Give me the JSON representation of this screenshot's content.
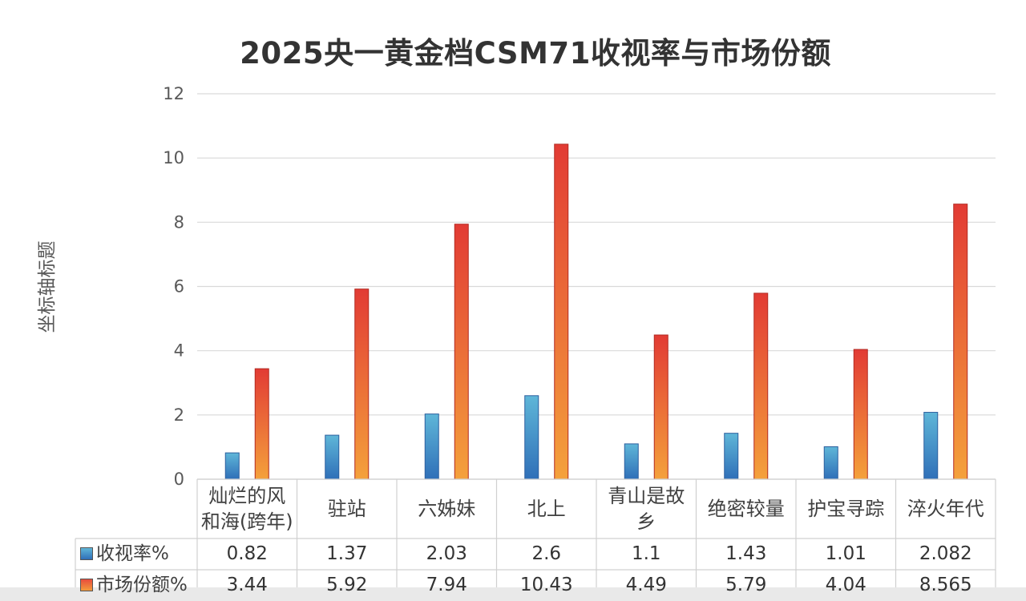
{
  "chart_data": {
    "type": "bar",
    "title": "2025央一黄金档CSM71收视率与市场份额",
    "ylabel": "坐标轴标题",
    "xlabel": "",
    "ylim": [
      0,
      12
    ],
    "yticks": [
      "0",
      "2",
      "4",
      "6",
      "8",
      "10",
      "12"
    ],
    "grid": true,
    "categories": [
      [
        "灿烂的风",
        "和海(跨年)"
      ],
      [
        "驻站"
      ],
      [
        "六姊妹"
      ],
      [
        "北上"
      ],
      [
        "青山是故",
        "乡"
      ],
      [
        "绝密较量"
      ],
      [
        "护宝寻踪"
      ],
      [
        "淬火年代"
      ]
    ],
    "series": [
      {
        "name": "收视率%",
        "values": [
          0.82,
          1.37,
          2.03,
          2.6,
          1.1,
          1.43,
          1.01,
          2.082
        ],
        "labels": [
          "0.82",
          "1.37",
          "2.03",
          "2.6",
          "1.1",
          "1.43",
          "1.01",
          "2.082"
        ],
        "color_top": "#5fb6d8",
        "color_bottom": "#2f6fb8"
      },
      {
        "name": "市场份额%",
        "values": [
          3.44,
          5.92,
          7.94,
          10.43,
          4.49,
          5.79,
          4.04,
          8.565
        ],
        "labels": [
          "3.44",
          "5.92",
          "7.94",
          "10.43",
          "4.49",
          "5.79",
          "4.04",
          "8.565"
        ],
        "color_top": "#e23b34",
        "color_bottom": "#f4a13c"
      }
    ],
    "legend_placement": "data-table"
  }
}
